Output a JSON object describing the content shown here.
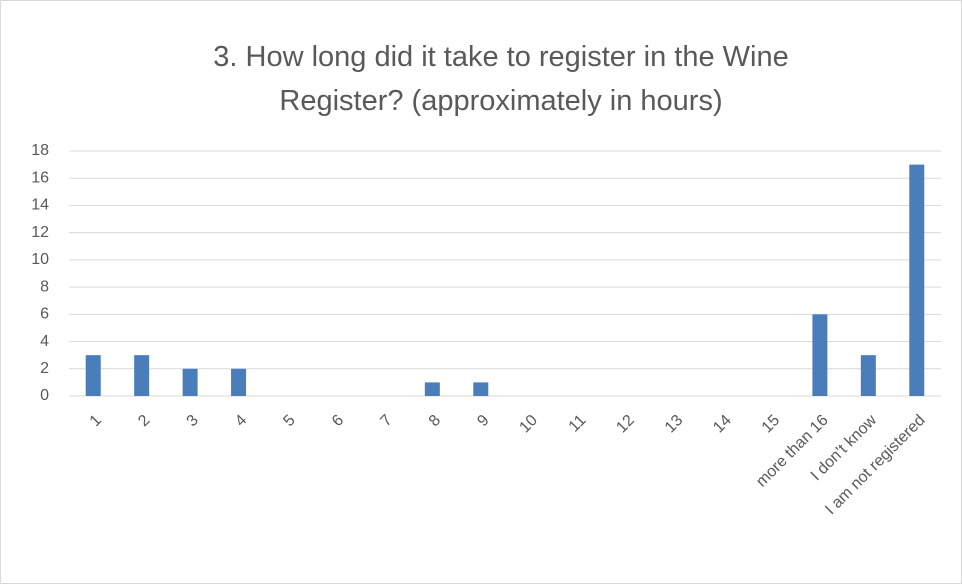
{
  "chart_data": {
    "type": "bar",
    "title": "3. How long did it take to register in the Wine Register? (approximately in hours)",
    "categories": [
      "1",
      "2",
      "3",
      "4",
      "5",
      "6",
      "7",
      "8",
      "9",
      "10",
      "11",
      "12",
      "13",
      "14",
      "15",
      "more than 16",
      "I don’t know",
      "I am not registered"
    ],
    "values": [
      3,
      3,
      2,
      2,
      0,
      0,
      0,
      1,
      1,
      0,
      0,
      0,
      0,
      0,
      0,
      6,
      3,
      17
    ],
    "color": "#4a7ebb",
    "ylim": [
      0,
      18
    ],
    "yticks": [
      0,
      2,
      4,
      6,
      8,
      10,
      12,
      14,
      16,
      18
    ],
    "grid": true
  }
}
